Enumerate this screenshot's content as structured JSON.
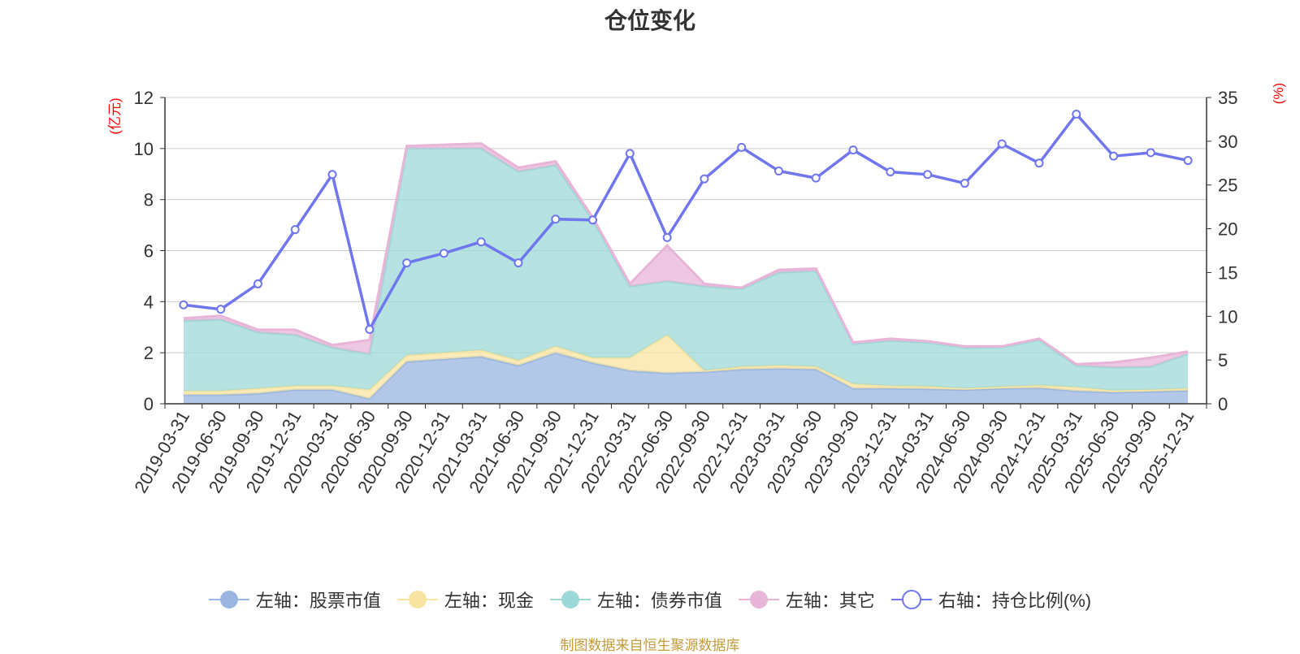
{
  "chart_data": {
    "type": "area",
    "title": "仓位变化",
    "ylabel_left": "(亿元)",
    "ylabel_right": "(%)",
    "ylim_left": [
      0,
      12
    ],
    "yticks_left": [
      "0",
      "2",
      "4",
      "6",
      "8",
      "10",
      "12"
    ],
    "ylim_right": [
      0,
      35
    ],
    "yticks_right": [
      "0",
      "5",
      "10",
      "15",
      "20",
      "25",
      "30",
      "35"
    ],
    "categories": [
      "2019-03-31",
      "2019-06-30",
      "2019-09-30",
      "2019-12-31",
      "2020-03-31",
      "2020-06-30",
      "2020-09-30",
      "2020-12-31",
      "2021-03-31",
      "2021-06-30",
      "2021-09-30",
      "2021-12-31",
      "2022-03-31",
      "2022-06-30",
      "2022-09-30",
      "2022-12-31",
      "2023-03-31",
      "2023-06-30",
      "2023-09-30",
      "2023-12-31",
      "2024-03-31",
      "2024-06-30",
      "2024-09-30",
      "2024-12-31",
      "2025-03-31",
      "2025-06-30",
      "2025-09-30",
      "2025-12-31"
    ],
    "series": [
      {
        "name": "左轴：股票市值",
        "axis": "left",
        "stack": true,
        "color": "#9ab6e0",
        "values": [
          0.35,
          0.35,
          0.4,
          0.55,
          0.55,
          0.2,
          1.65,
          1.75,
          1.85,
          1.5,
          2.0,
          1.6,
          1.3,
          1.2,
          1.25,
          1.35,
          1.38,
          1.35,
          0.6,
          0.6,
          0.58,
          0.55,
          0.6,
          0.62,
          0.5,
          0.45,
          0.48,
          0.52
        ]
      },
      {
        "name": "左轴：现金",
        "axis": "left",
        "stack": true,
        "color": "#f8e4a0",
        "values": [
          0.15,
          0.15,
          0.2,
          0.15,
          0.15,
          0.35,
          0.25,
          0.25,
          0.25,
          0.2,
          0.25,
          0.2,
          0.5,
          1.5,
          0.05,
          0.1,
          0.12,
          0.1,
          0.18,
          0.1,
          0.1,
          0.05,
          0.07,
          0.1,
          0.15,
          0.07,
          0.07,
          0.08
        ]
      },
      {
        "name": "左轴：债券市值",
        "axis": "left",
        "stack": true,
        "color": "#9dd8d8",
        "values": [
          2.75,
          2.8,
          2.2,
          2.0,
          1.5,
          1.4,
          8.1,
          8.0,
          7.9,
          7.4,
          7.1,
          5.4,
          2.8,
          2.1,
          3.3,
          3.05,
          3.65,
          3.75,
          1.57,
          1.77,
          1.72,
          1.6,
          1.55,
          1.78,
          0.85,
          0.9,
          0.9,
          1.35
        ]
      },
      {
        "name": "左轴：其它",
        "axis": "left",
        "stack": true,
        "color": "#e8b4d8",
        "values": [
          0.1,
          0.15,
          0.1,
          0.2,
          0.1,
          0.55,
          0.1,
          0.15,
          0.2,
          0.15,
          0.15,
          0.1,
          0.1,
          1.4,
          0.1,
          0.05,
          0.1,
          0.1,
          0.05,
          0.08,
          0.05,
          0.05,
          0.03,
          0.05,
          0.05,
          0.2,
          0.35,
          0.1
        ]
      },
      {
        "name": "右轴：持仓比例(%)",
        "axis": "right",
        "stack": false,
        "color": "#7076ee",
        "values": [
          11.3,
          10.8,
          13.7,
          19.9,
          26.2,
          8.5,
          16.1,
          17.2,
          18.5,
          16.1,
          21.1,
          21.0,
          28.6,
          19.0,
          25.7,
          29.3,
          26.6,
          25.8,
          29.0,
          26.5,
          26.2,
          25.2,
          29.7,
          27.5,
          33.1,
          28.3,
          28.7,
          27.8
        ]
      }
    ]
  },
  "source_text": "制图数据来自恒生聚源数据库",
  "colors": {
    "axis_label": "#ff0000",
    "grid": "#cccccc",
    "axis": "#333333",
    "text": "#333333"
  }
}
